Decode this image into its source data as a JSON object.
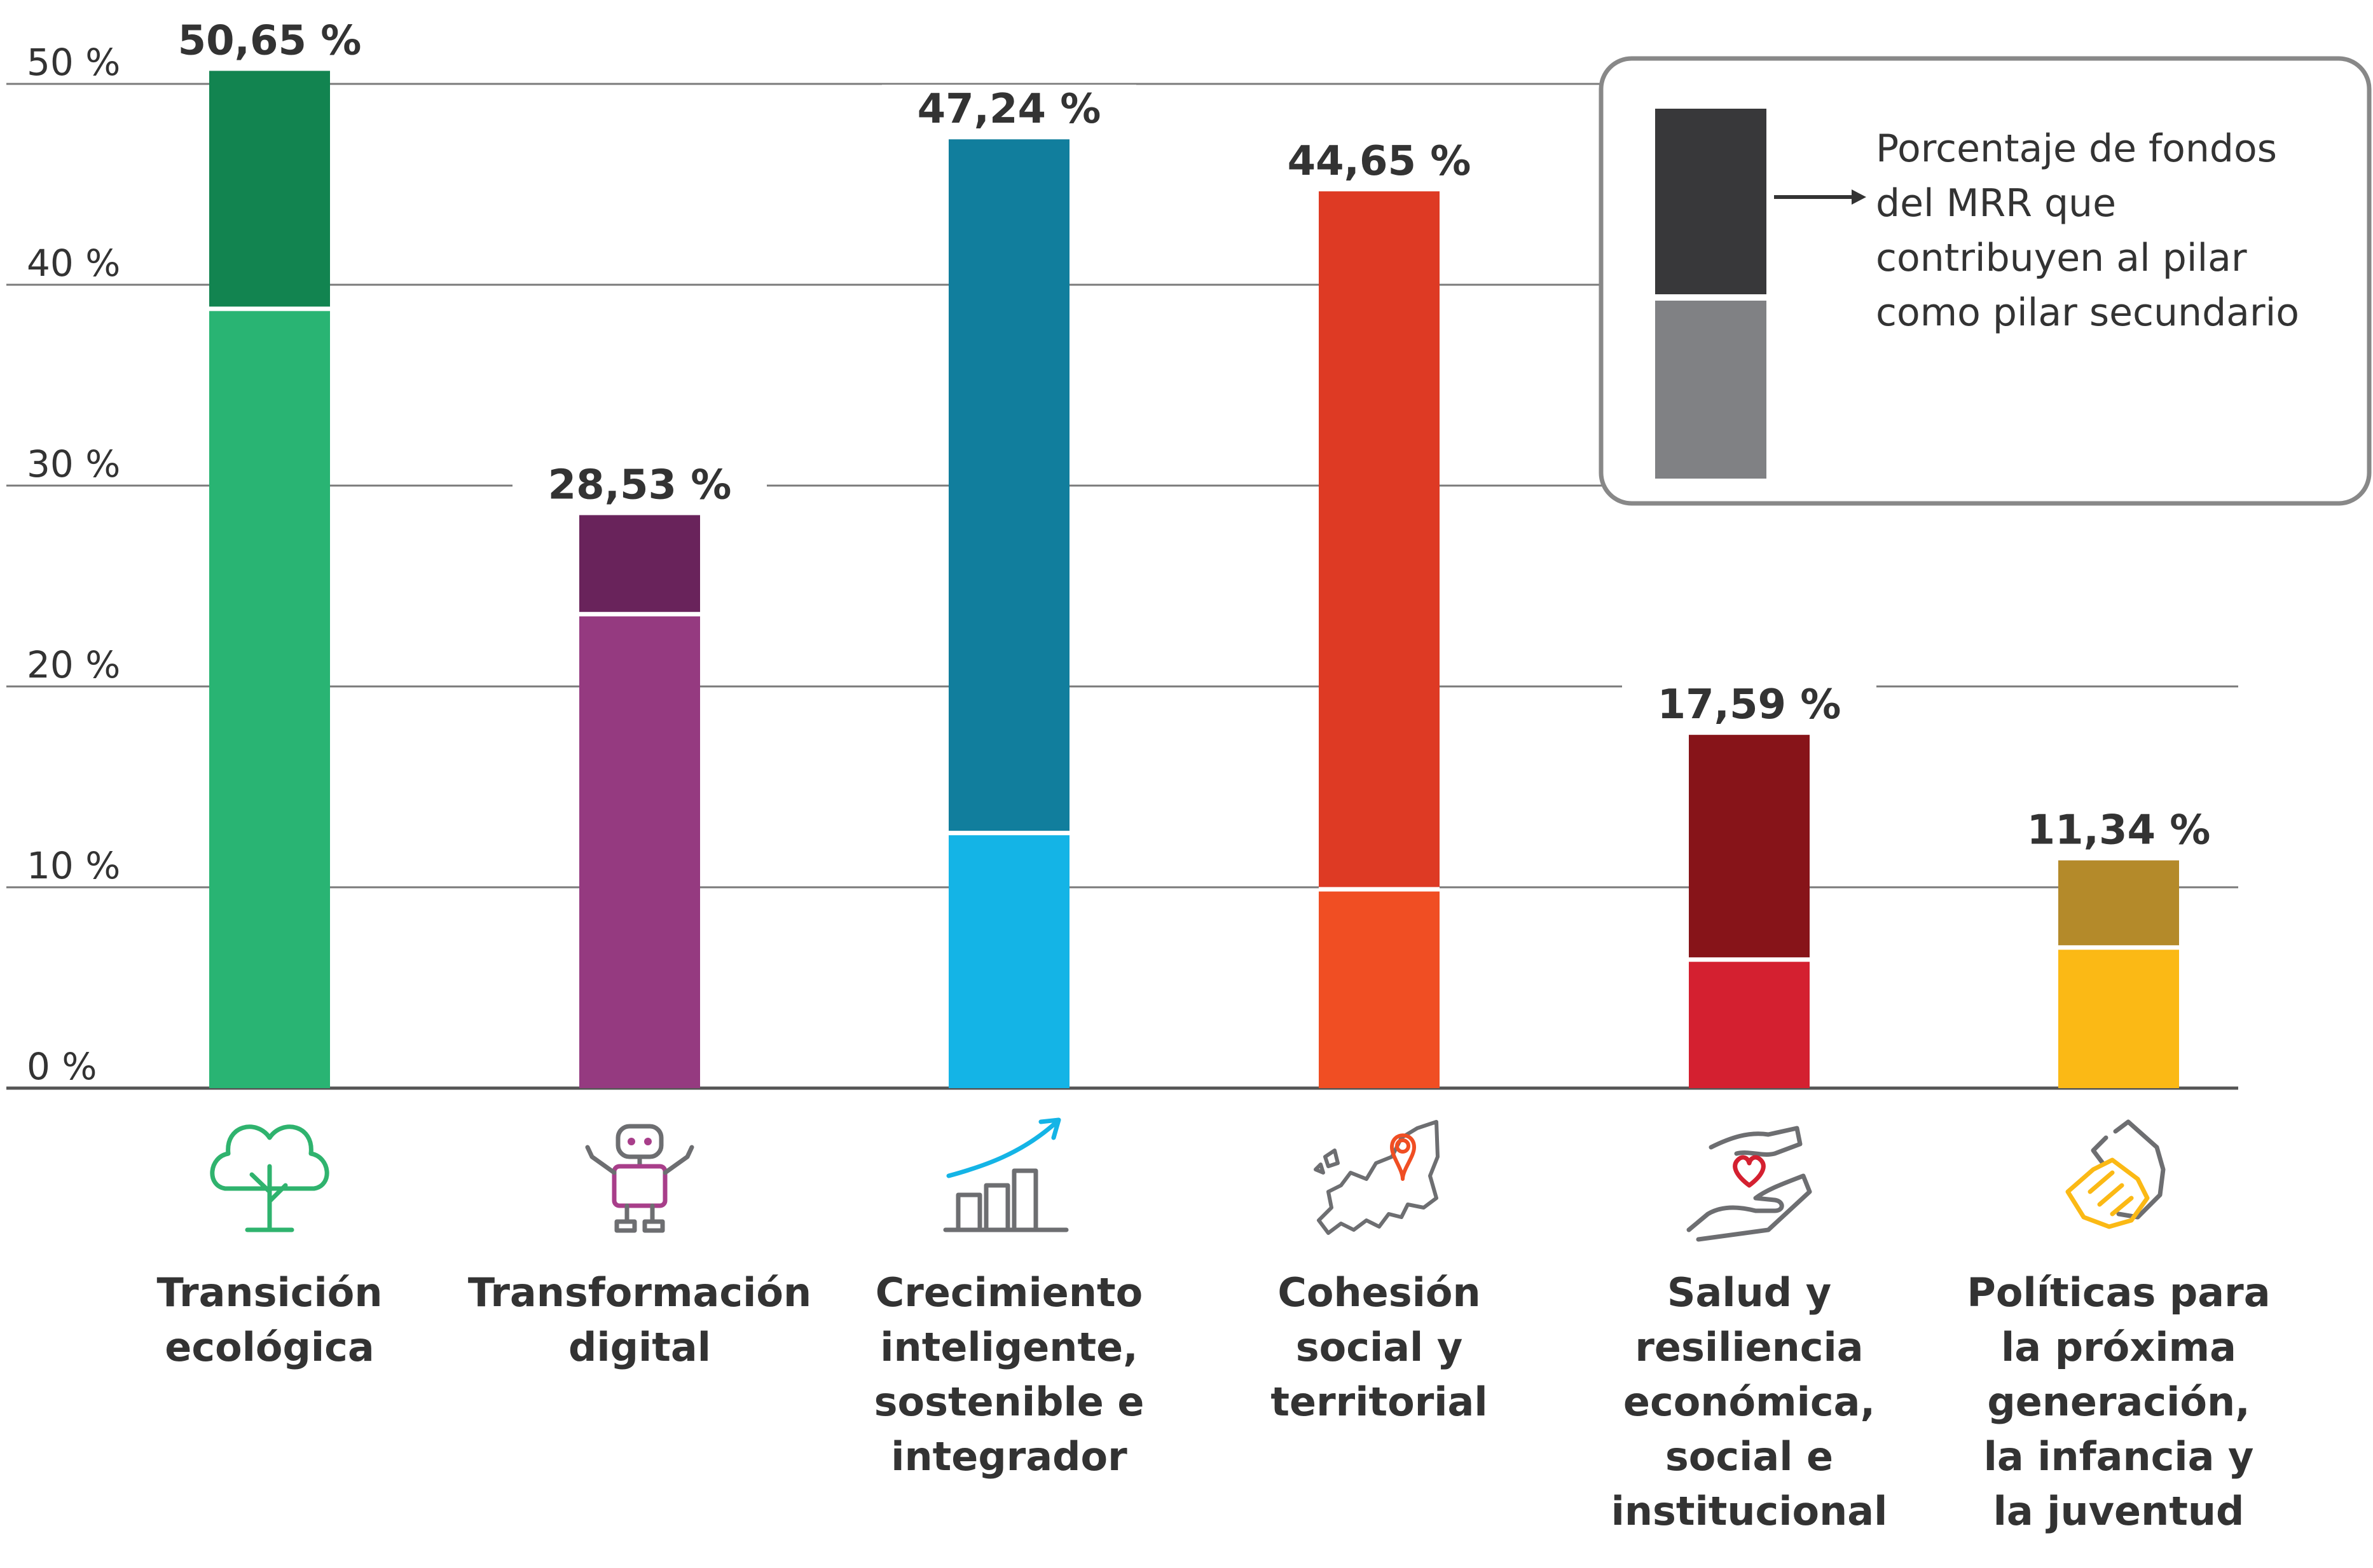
{
  "chart_data": {
    "type": "bar",
    "stacked": true,
    "categories": [
      [
        "Transición",
        "ecológica"
      ],
      [
        "Transformación",
        "digital"
      ],
      [
        "Crecimiento",
        "inteligente,",
        "sostenible e",
        "integrador"
      ],
      [
        "Cohesión",
        "social y",
        "territorial"
      ],
      [
        "Salud y",
        "resiliencia",
        "económica,",
        "social e",
        "institucional"
      ],
      [
        "Políticas para",
        "la próxima",
        "generación,",
        "la infancia y",
        "la juventud"
      ]
    ],
    "totals": [
      50.65,
      28.53,
      47.24,
      44.65,
      17.59,
      11.34
    ],
    "total_labels": [
      "50,65 %",
      "28,53 %",
      "47,24 %",
      "44,65 %",
      "17,59 %",
      "11,34 %"
    ],
    "series": [
      {
        "values": [
          38.8,
          23.6,
          12.7,
          9.9,
          6.4,
          7.0
        ]
      },
      {
        "name": "Porcentaje de fondos del MRR que contribuyen al pilar como pilar secundario",
        "values": [
          11.85,
          4.93,
          34.54,
          34.75,
          11.19,
          4.34
        ]
      }
    ],
    "colors_primary": [
      "#29b473",
      "#953a80",
      "#14b4e6",
      "#f04e23",
      "#d42030",
      "#fbb915"
    ],
    "colors_secondary": [
      "#128450",
      "#69235b",
      "#117e9d",
      "#de3a24",
      "#871419",
      "#b48a2a"
    ],
    "icons": [
      "tree-icon",
      "robot-icon",
      "growth-chart-icon",
      "europe-map-pin-icon",
      "heart-hands-icon",
      "holding-hands-icon"
    ],
    "y_ticks": [
      0,
      10,
      20,
      30,
      40,
      50
    ],
    "y_tick_labels": [
      "0 %",
      "10 %",
      "20 %",
      "30 %",
      "40 %",
      "50 %"
    ],
    "ylim": [
      0,
      50
    ],
    "grid": true,
    "legend": {
      "placement": "top-right",
      "text_lines": [
        "Porcentaje de fondos",
        "del MRR que",
        "contribuyen al pilar",
        "como pilar secundario"
      ],
      "swatch_top_color": "#38383a",
      "swatch_bottom_color": "#808184"
    }
  }
}
